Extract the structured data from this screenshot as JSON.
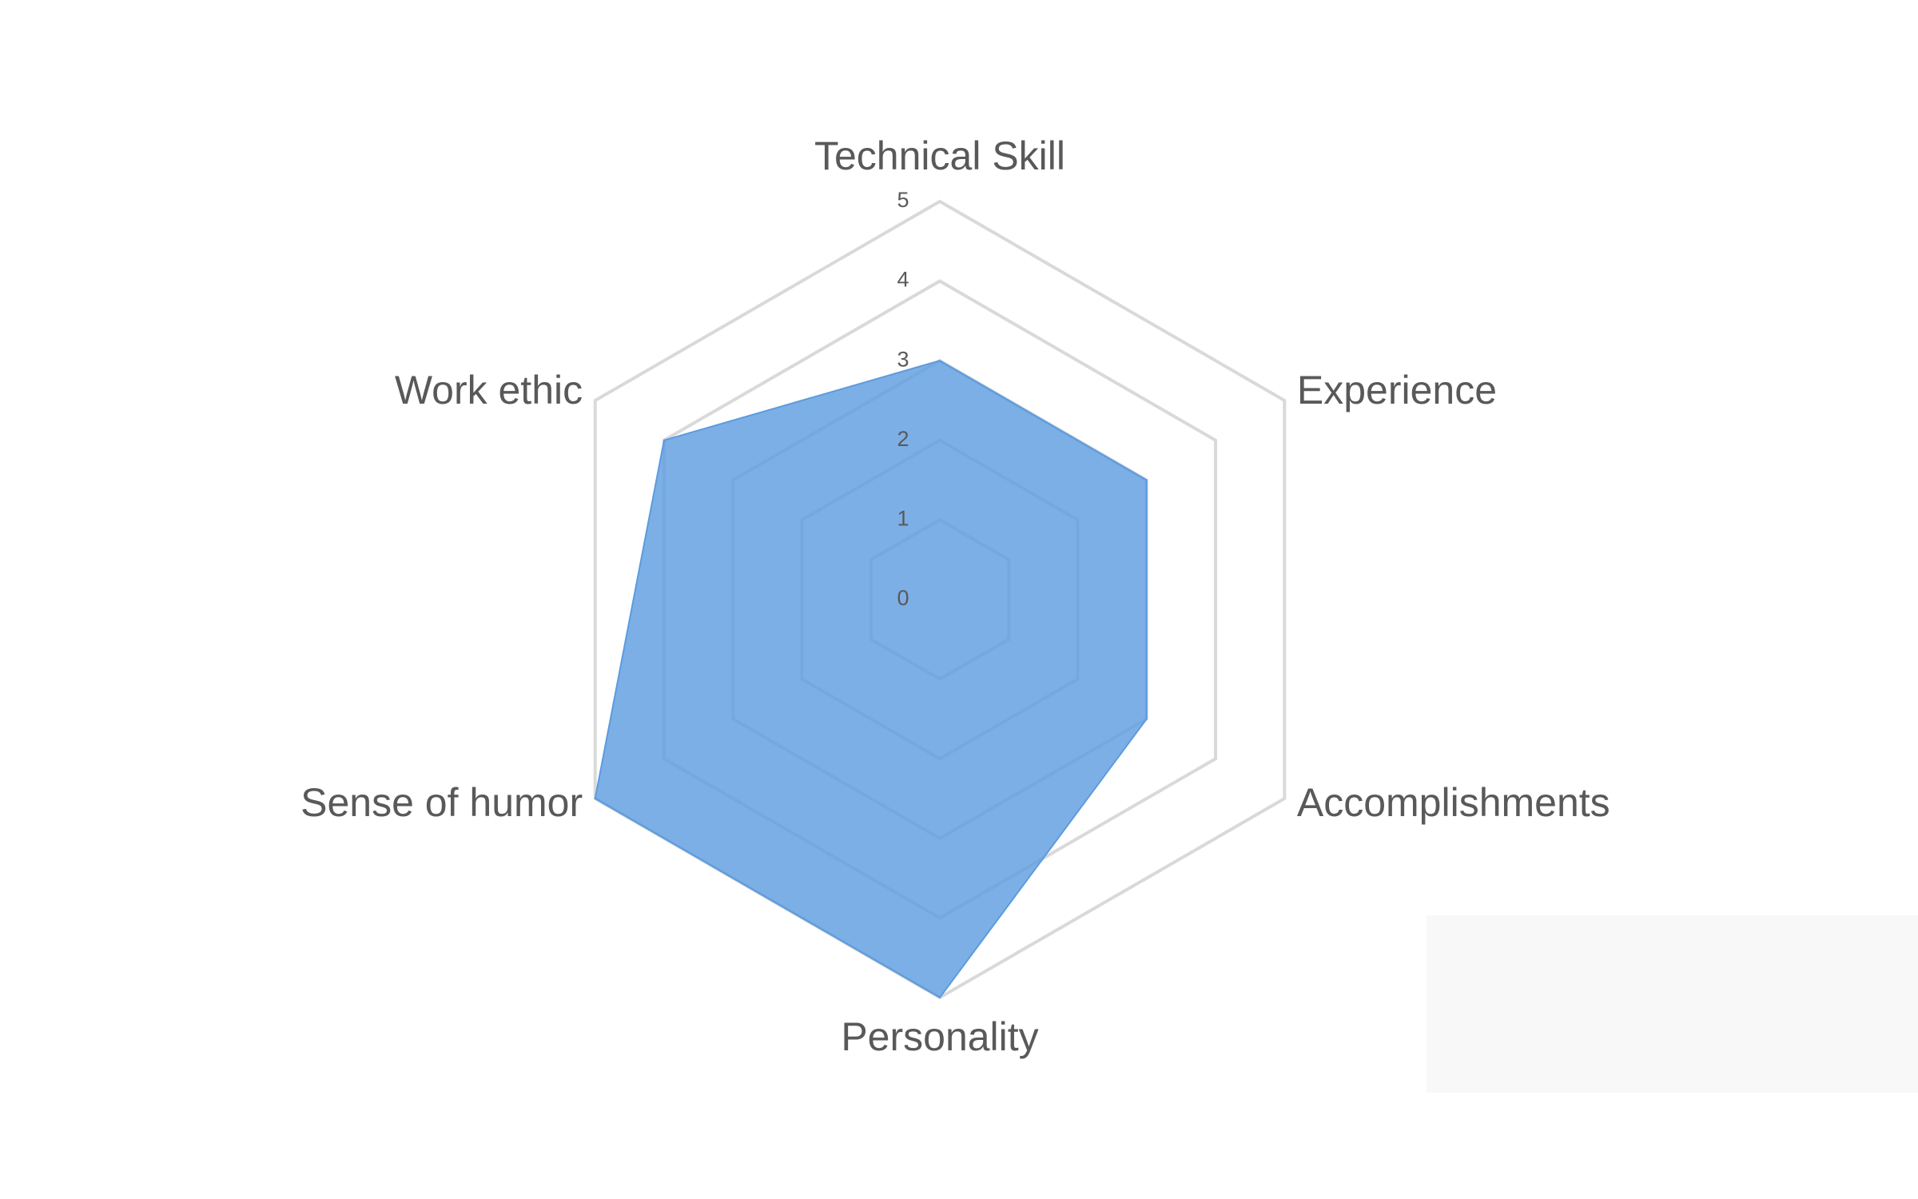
{
  "chart_data": {
    "type": "radar",
    "categories": [
      "Technical Skill",
      "Experience",
      "Accomplishments",
      "Personality",
      "Sense of humor",
      "Work ethic"
    ],
    "series": [
      {
        "color": "#5b9bdf",
        "values": [
          3,
          3,
          3,
          5,
          5,
          4
        ]
      }
    ],
    "rlim": [
      0,
      5
    ],
    "rticks": [
      0,
      1,
      2,
      3,
      4,
      5
    ],
    "grid": true
  }
}
